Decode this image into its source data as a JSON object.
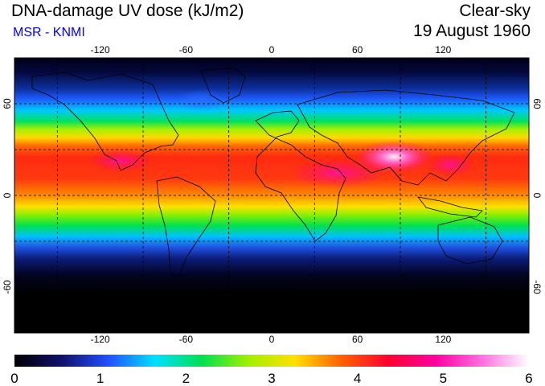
{
  "header": {
    "title": "DNA-damage UV dose (kJ/m2)",
    "source": "MSR - KNMI",
    "condition": "Clear-sky",
    "date": "19 August 1960"
  },
  "colors": {
    "source_text": "#0000ff",
    "grid": "#000000"
  },
  "map": {
    "lon_ticks": [
      "-120",
      "-60",
      "0",
      "60",
      "120"
    ],
    "lat_ticks": [
      "60",
      "0",
      "-60"
    ]
  },
  "colorbar": {
    "min": 0,
    "max": 6,
    "labels": [
      "0",
      "1",
      "2",
      "3",
      "4",
      "5",
      "6"
    ],
    "stops": [
      "#000000",
      "#10106a",
      "#2050ff",
      "#00e0ff",
      "#00e050",
      "#a0f000",
      "#ffe000",
      "#ff6000",
      "#ff0030",
      "#ff00a0",
      "#ff70e0",
      "#ffffff"
    ]
  }
}
